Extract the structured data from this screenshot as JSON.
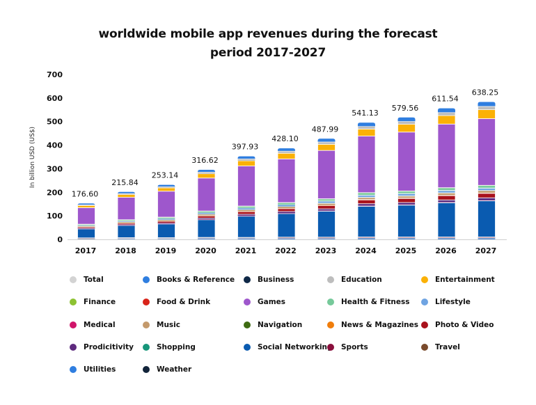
{
  "chart_data": {
    "type": "bar",
    "stacked": true,
    "title": [
      "worldwide mobile app revenues during the forecast",
      "period 2017-2027"
    ],
    "xlabel": "",
    "ylabel": "In billion USD (US$)",
    "ylim": [
      0,
      700
    ],
    "yticks": [
      0,
      100,
      200,
      300,
      400,
      500,
      600,
      700
    ],
    "grid": false,
    "legend_position": "bottom",
    "categories": [
      "2017",
      "2018",
      "2019",
      "2020",
      "2021",
      "2022",
      "2023",
      "2024",
      "2025",
      "2026",
      "2027"
    ],
    "totals": [
      "176.60",
      "215.84",
      "253.14",
      "316.62",
      "397.93",
      "428.10",
      "487.99",
      "541.13",
      "579.56",
      "611.54",
      "638.25"
    ],
    "series": [
      {
        "name": "Utilities",
        "color": "#2f7ee0",
        "values": [
          2,
          3,
          3,
          4,
          4,
          4,
          4,
          5,
          5,
          5,
          5
        ]
      },
      {
        "name": "Business",
        "color": "#0f2847",
        "values": [
          1,
          1,
          1,
          1,
          1,
          1,
          1,
          1,
          1,
          1,
          1
        ]
      },
      {
        "name": "Sports",
        "color": "#8a0f3c",
        "values": [
          2,
          2,
          2,
          2,
          2,
          3,
          3,
          3,
          3,
          3,
          3
        ]
      },
      {
        "name": "Travel",
        "color": "#7a4a2c",
        "values": [
          1,
          1,
          1,
          1,
          1,
          1,
          1,
          1,
          1,
          1,
          1
        ]
      },
      {
        "name": "Weather",
        "color": "#12243a",
        "values": [
          0.5,
          0.5,
          0.5,
          0.5,
          0.5,
          0.5,
          0.5,
          0.5,
          0.5,
          0.5,
          0.5
        ]
      },
      {
        "name": "Social Networking",
        "color": "#0a5bb0",
        "values": [
          38,
          52,
          58,
          75,
          90,
          100,
          110,
          130,
          135,
          145,
          153
        ]
      },
      {
        "name": "Medical",
        "color": "#d0156a",
        "values": [
          1,
          1,
          1,
          1,
          1,
          1,
          1,
          1,
          1,
          1,
          1
        ]
      },
      {
        "name": "Prodicitivity",
        "color": "#5e2a7e",
        "values": [
          3,
          3,
          4,
          6,
          7,
          8,
          9,
          10,
          10,
          11,
          12
        ]
      },
      {
        "name": "Photo & Video",
        "color": "#a9121c",
        "values": [
          4,
          5,
          6,
          9,
          11,
          12,
          14,
          16,
          17,
          18,
          19
        ]
      },
      {
        "name": "Food & Drink",
        "color": "#d9241a",
        "values": [
          1,
          1,
          1,
          1,
          1,
          1,
          1,
          1,
          1,
          1,
          1
        ]
      },
      {
        "name": "News & Magazines",
        "color": "#f07d0b",
        "values": [
          0.5,
          0.5,
          0.5,
          0.5,
          0.5,
          0.5,
          0.5,
          0.5,
          0.5,
          0.5,
          0.5
        ]
      },
      {
        "name": "Music",
        "color": "#c49a6c",
        "values": [
          3,
          4,
          5,
          6,
          7,
          7,
          8,
          9,
          9,
          10,
          10
        ]
      },
      {
        "name": "Navigation",
        "color": "#3e6b12",
        "values": [
          0.5,
          0.5,
          0.5,
          0.5,
          0.5,
          0.5,
          0.5,
          0.5,
          0.5,
          0.5,
          0.5
        ]
      },
      {
        "name": "Lifestyle",
        "color": "#6fa4e2",
        "values": [
          3,
          4,
          5,
          6,
          7,
          8,
          9,
          9,
          10,
          10,
          10
        ]
      },
      {
        "name": "Shopping",
        "color": "#17967a",
        "values": [
          0.5,
          0.5,
          0.5,
          0.5,
          0.5,
          0.5,
          0.5,
          0.5,
          0.5,
          0.5,
          0.5
        ]
      },
      {
        "name": "Health & Fitness",
        "color": "#76c99a",
        "values": [
          3,
          4,
          5,
          6,
          7,
          8,
          9,
          10,
          10,
          11,
          11
        ]
      },
      {
        "name": "Finance",
        "color": "#8dc232",
        "values": [
          0.5,
          0.5,
          0.5,
          0.5,
          0.5,
          0.5,
          0.5,
          0.5,
          0.5,
          0.5,
          0.5
        ]
      },
      {
        "name": "Games",
        "color": "#9e57cc",
        "values": [
          70,
          95,
          110,
          140,
          170,
          185,
          205,
          240,
          250,
          270,
          283
        ]
      },
      {
        "name": "Entertainment",
        "color": "#fbb106",
        "values": [
          9,
          12,
          14,
          18,
          22,
          24,
          26,
          30,
          33,
          36,
          38
        ]
      },
      {
        "name": "Education",
        "color": "#bdbdbd",
        "values": [
          3,
          4,
          5,
          7,
          8,
          9,
          10,
          11,
          12,
          13,
          14
        ]
      },
      {
        "name": "Total",
        "color": "#d3d3d3",
        "values": [
          1,
          1,
          1,
          1,
          1,
          1,
          1,
          1,
          1,
          1,
          1
        ]
      },
      {
        "name": "Books & Reference",
        "color": "#2f7ee0",
        "values": [
          5,
          6,
          7,
          9,
          10,
          11,
          13,
          15,
          16,
          17,
          18
        ]
      }
    ],
    "legend": [
      {
        "name": "Total",
        "color": "#d3d3d3"
      },
      {
        "name": "Books & Reference",
        "color": "#2f7ee0"
      },
      {
        "name": "Business",
        "color": "#0f2847"
      },
      {
        "name": "Education",
        "color": "#bdbdbd"
      },
      {
        "name": "Entertainment",
        "color": "#fbb106"
      },
      {
        "name": "Finance",
        "color": "#8dc232"
      },
      {
        "name": "Food & Drink",
        "color": "#d9241a"
      },
      {
        "name": "Games",
        "color": "#9e57cc"
      },
      {
        "name": "Health & Fitness",
        "color": "#76c99a"
      },
      {
        "name": "Lifestyle",
        "color": "#6fa4e2"
      },
      {
        "name": "Medical",
        "color": "#d0156a"
      },
      {
        "name": "Music",
        "color": "#c49a6c"
      },
      {
        "name": "Navigation",
        "color": "#3e6b12"
      },
      {
        "name": "News & Magazines",
        "color": "#f07d0b"
      },
      {
        "name": "Photo & Video",
        "color": "#a9121c"
      },
      {
        "name": "Prodicitivity",
        "color": "#5e2a7e"
      },
      {
        "name": "Shopping",
        "color": "#17967a"
      },
      {
        "name": "Social Networking",
        "color": "#0a5bb0"
      },
      {
        "name": "Sports",
        "color": "#8a0f3c"
      },
      {
        "name": "Travel",
        "color": "#7a4a2c"
      },
      {
        "name": "Utilities",
        "color": "#2f7ee0"
      },
      {
        "name": "Weather",
        "color": "#12243a"
      }
    ]
  }
}
